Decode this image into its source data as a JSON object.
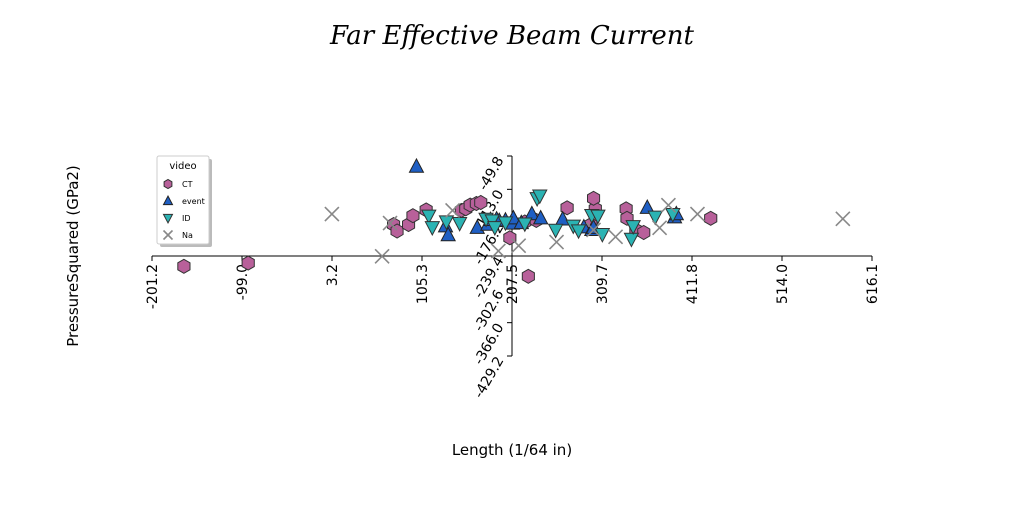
{
  "chart_data": {
    "type": "scatter",
    "title": "Far Effective Beam Current",
    "xlabel": "Length (1/64 in)",
    "ylabel": "PressureSquared (GPa2)",
    "xlim": [
      -201.2,
      616.1
    ],
    "ylim": [
      -429.2,
      -49.8
    ],
    "x_ticks": [
      "-201.2",
      "-99.0",
      "3.2",
      "105.3",
      "207.5",
      "309.7",
      "411.8",
      "514.0",
      "616.1"
    ],
    "y_ticks": [
      "-49.8",
      "-113.0",
      "-176.2",
      "-239.4",
      "-302.6",
      "-366.0",
      "-429.2"
    ],
    "legend": {
      "title": "video",
      "position": "upper-left",
      "entries": [
        "CT",
        "event",
        "ID",
        "Na"
      ]
    },
    "colors": {
      "CT": "#b8609a",
      "event": "#1f5fc4",
      "ID": "#2bb3b3",
      "Na": "#888888"
    },
    "series": [
      {
        "name": "CT",
        "marker": "hexagon",
        "points": [
          [
            -165,
            -259
          ],
          [
            -92,
            -253
          ],
          [
            73,
            -180
          ],
          [
            77,
            -192
          ],
          [
            90,
            -180
          ],
          [
            95,
            -163
          ],
          [
            110,
            -152
          ],
          [
            150,
            -153
          ],
          [
            155,
            -150
          ],
          [
            160,
            -143
          ],
          [
            167,
            -140
          ],
          [
            172,
            -138
          ],
          [
            205,
            -205
          ],
          [
            222,
            -175
          ],
          [
            235,
            -172
          ],
          [
            270,
            -148
          ],
          [
            297,
            -180
          ],
          [
            302,
            -150
          ],
          [
            337,
            -150
          ],
          [
            338,
            -168
          ],
          [
            348,
            -190
          ],
          [
            357,
            -195
          ],
          [
            433,
            -168
          ],
          [
            226,
            -278
          ],
          [
            300,
            -130
          ]
        ]
      },
      {
        "name": "event",
        "marker": "triangle-up",
        "points": [
          [
            99,
            -70
          ],
          [
            132,
            -183
          ],
          [
            135,
            -200
          ],
          [
            168,
            -186
          ],
          [
            180,
            -180
          ],
          [
            183,
            -171
          ],
          [
            190,
            -170
          ],
          [
            193,
            -173
          ],
          [
            200,
            -172
          ],
          [
            208,
            -178
          ],
          [
            209,
            -168
          ],
          [
            218,
            -177
          ],
          [
            230,
            -160
          ],
          [
            240,
            -168
          ],
          [
            265,
            -170
          ],
          [
            289,
            -185
          ],
          [
            298,
            -190
          ],
          [
            300,
            -186
          ],
          [
            361,
            -148
          ],
          [
            392,
            -166
          ],
          [
            394,
            -160
          ]
        ]
      },
      {
        "name": "ID",
        "marker": "triangle-down",
        "points": [
          [
            113,
            -163
          ],
          [
            117,
            -185
          ],
          [
            133,
            -174
          ],
          [
            148,
            -177
          ],
          [
            178,
            -169
          ],
          [
            185,
            -172
          ],
          [
            188,
            -185
          ],
          [
            200,
            -176
          ],
          [
            222,
            -178
          ],
          [
            236,
            -130
          ],
          [
            239,
            -125
          ],
          [
            257,
            -190
          ],
          [
            277,
            -182
          ],
          [
            283,
            -191
          ],
          [
            298,
            -162
          ],
          [
            305,
            -163
          ],
          [
            310,
            -198
          ],
          [
            343,
            -207
          ],
          [
            345,
            -183
          ],
          [
            370,
            -165
          ],
          [
            390,
            -160
          ]
        ]
      },
      {
        "name": "Na",
        "marker": "x",
        "points": [
          [
            3,
            -160
          ],
          [
            69,
            -177
          ],
          [
            60,
            -240
          ],
          [
            140,
            -153
          ],
          [
            192,
            -230
          ],
          [
            215,
            -220
          ],
          [
            258,
            -213
          ],
          [
            300,
            -190
          ],
          [
            325,
            -203
          ],
          [
            375,
            -186
          ],
          [
            385,
            -143
          ],
          [
            418,
            -160
          ],
          [
            583,
            -169
          ]
        ]
      }
    ]
  }
}
